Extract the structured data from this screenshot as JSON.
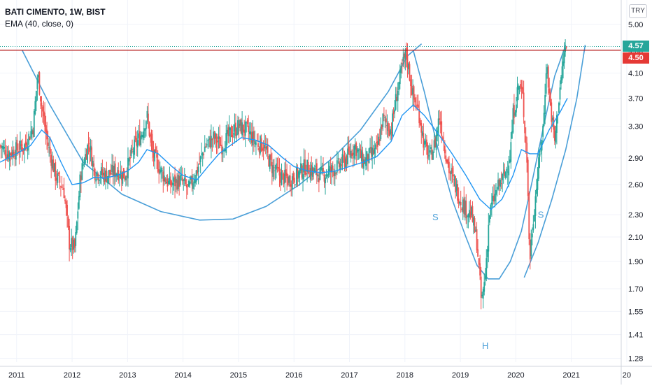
{
  "header": {
    "symbol": "BATI CIMENTO, 1W, BIST",
    "indicator": "EMA (40, close, 0)",
    "currency": "TRY"
  },
  "price_tags": {
    "last": "4.57",
    "level": "4.50"
  },
  "colors": {
    "background": "#ffffff",
    "up": "#26a69a",
    "down": "#ef5350",
    "ema": "#2196f3",
    "pattern": "#4a9fd8",
    "level_line": "#b71c1c",
    "last_tag": "#26a69a",
    "level_tag": "#e53935",
    "axis_text": "#131722"
  },
  "chart_data": {
    "type": "candlestick",
    "scale": "log",
    "ylim": [
      1.26,
      5.4
    ],
    "y_ticks": [
      "5.00",
      "4.50",
      "4.10",
      "3.70",
      "3.30",
      "2.90",
      "2.60",
      "2.30",
      "2.10",
      "1.90",
      "1.70",
      "1.55",
      "1.41",
      "1.28"
    ],
    "x_ticks": [
      "2011",
      "2012",
      "2013",
      "2014",
      "2015",
      "2016",
      "2017",
      "2018",
      "2019",
      "2020",
      "2021",
      "20"
    ],
    "xlim": [
      2010.7,
      2021.9
    ],
    "horizontal_levels": [
      4.5
    ],
    "last_price": 4.57,
    "pattern_labels": [
      {
        "text": "S",
        "x": 2018.55,
        "y": 2.25
      },
      {
        "text": "H",
        "x": 2019.45,
        "y": 1.33
      },
      {
        "text": "S",
        "x": 2020.45,
        "y": 2.27
      }
    ],
    "close_series": [
      [
        2010.7,
        3.05
      ],
      [
        2010.85,
        2.95
      ],
      [
        2011.0,
        3.0
      ],
      [
        2011.15,
        3.05
      ],
      [
        2011.3,
        3.3
      ],
      [
        2011.38,
        4.1
      ],
      [
        2011.45,
        3.6
      ],
      [
        2011.55,
        3.1
      ],
      [
        2011.7,
        2.7
      ],
      [
        2011.85,
        2.55
      ],
      [
        2011.95,
        2.05
      ],
      [
        2012.05,
        2.0
      ],
      [
        2012.15,
        2.7
      ],
      [
        2012.3,
        3.1
      ],
      [
        2012.4,
        2.75
      ],
      [
        2012.6,
        2.7
      ],
      [
        2012.8,
        2.75
      ],
      [
        2012.95,
        2.7
      ],
      [
        2013.1,
        3.0
      ],
      [
        2013.25,
        3.2
      ],
      [
        2013.35,
        3.45
      ],
      [
        2013.45,
        2.95
      ],
      [
        2013.6,
        2.75
      ],
      [
        2013.75,
        2.6
      ],
      [
        2013.95,
        2.65
      ],
      [
        2014.1,
        2.55
      ],
      [
        2014.25,
        2.75
      ],
      [
        2014.4,
        3.05
      ],
      [
        2014.55,
        3.15
      ],
      [
        2014.7,
        3.05
      ],
      [
        2014.85,
        3.2
      ],
      [
        2015.0,
        3.3
      ],
      [
        2015.15,
        3.25
      ],
      [
        2015.3,
        3.1
      ],
      [
        2015.45,
        3.05
      ],
      [
        2015.6,
        2.8
      ],
      [
        2015.75,
        2.7
      ],
      [
        2015.9,
        2.65
      ],
      [
        2016.05,
        2.7
      ],
      [
        2016.2,
        2.8
      ],
      [
        2016.35,
        2.75
      ],
      [
        2016.5,
        2.7
      ],
      [
        2016.65,
        2.75
      ],
      [
        2016.8,
        2.8
      ],
      [
        2016.95,
        2.9
      ],
      [
        2017.1,
        3.05
      ],
      [
        2017.25,
        2.85
      ],
      [
        2017.4,
        2.95
      ],
      [
        2017.5,
        3.0
      ],
      [
        2017.6,
        3.4
      ],
      [
        2017.75,
        3.25
      ],
      [
        2017.85,
        3.75
      ],
      [
        2017.95,
        4.2
      ],
      [
        2018.02,
        4.45
      ],
      [
        2018.08,
        4.1
      ],
      [
        2018.15,
        3.7
      ],
      [
        2018.25,
        3.5
      ],
      [
        2018.35,
        3.05
      ],
      [
        2018.45,
        2.9
      ],
      [
        2018.55,
        3.1
      ],
      [
        2018.62,
        3.45
      ],
      [
        2018.7,
        3.1
      ],
      [
        2018.8,
        2.75
      ],
      [
        2018.9,
        2.6
      ],
      [
        2019.0,
        2.45
      ],
      [
        2019.1,
        2.35
      ],
      [
        2019.2,
        2.3
      ],
      [
        2019.3,
        2.05
      ],
      [
        2019.38,
        1.6
      ],
      [
        2019.45,
        1.8
      ],
      [
        2019.52,
        2.3
      ],
      [
        2019.6,
        2.45
      ],
      [
        2019.7,
        2.6
      ],
      [
        2019.8,
        2.7
      ],
      [
        2019.9,
        2.95
      ],
      [
        2019.95,
        3.45
      ],
      [
        2020.05,
        3.9
      ],
      [
        2020.12,
        3.75
      ],
      [
        2020.2,
        2.9
      ],
      [
        2020.25,
        1.9
      ],
      [
        2020.3,
        2.2
      ],
      [
        2020.4,
        2.75
      ],
      [
        2020.5,
        3.35
      ],
      [
        2020.55,
        4.3
      ],
      [
        2020.62,
        3.6
      ],
      [
        2020.7,
        3.1
      ],
      [
        2020.8,
        3.9
      ],
      [
        2020.88,
        4.5
      ],
      [
        2020.93,
        4.57
      ]
    ],
    "ema_series": [
      [
        2010.7,
        2.85
      ],
      [
        2011.0,
        2.95
      ],
      [
        2011.25,
        3.05
      ],
      [
        2011.45,
        3.25
      ],
      [
        2011.6,
        3.15
      ],
      [
        2011.8,
        2.85
      ],
      [
        2012.0,
        2.6
      ],
      [
        2012.2,
        2.62
      ],
      [
        2012.4,
        2.68
      ],
      [
        2012.6,
        2.67
      ],
      [
        2012.8,
        2.7
      ],
      [
        2013.0,
        2.75
      ],
      [
        2013.2,
        2.85
      ],
      [
        2013.35,
        3.0
      ],
      [
        2013.55,
        2.95
      ],
      [
        2013.8,
        2.8
      ],
      [
        2014.0,
        2.7
      ],
      [
        2014.25,
        2.65
      ],
      [
        2014.45,
        2.8
      ],
      [
        2014.65,
        2.95
      ],
      [
        2014.85,
        3.05
      ],
      [
        2015.05,
        3.15
      ],
      [
        2015.3,
        3.12
      ],
      [
        2015.55,
        3.05
      ],
      [
        2015.8,
        2.9
      ],
      [
        2016.0,
        2.8
      ],
      [
        2016.25,
        2.75
      ],
      [
        2016.5,
        2.73
      ],
      [
        2016.75,
        2.75
      ],
      [
        2017.0,
        2.8
      ],
      [
        2017.25,
        2.85
      ],
      [
        2017.5,
        2.92
      ],
      [
        2017.75,
        3.1
      ],
      [
        2017.95,
        3.45
      ],
      [
        2018.15,
        3.6
      ],
      [
        2018.35,
        3.45
      ],
      [
        2018.6,
        3.2
      ],
      [
        2018.85,
        2.95
      ],
      [
        2019.1,
        2.7
      ],
      [
        2019.35,
        2.45
      ],
      [
        2019.55,
        2.35
      ],
      [
        2019.75,
        2.45
      ],
      [
        2019.95,
        2.7
      ],
      [
        2020.1,
        3.0
      ],
      [
        2020.25,
        2.95
      ],
      [
        2020.4,
        2.95
      ],
      [
        2020.6,
        3.25
      ],
      [
        2020.8,
        3.5
      ],
      [
        2020.93,
        3.7
      ]
    ],
    "pattern_curves": [
      [
        [
          2011.1,
          4.5
        ],
        [
          2011.6,
          3.6
        ],
        [
          2012.2,
          2.85
        ],
        [
          2012.9,
          2.5
        ],
        [
          2013.6,
          2.33
        ],
        [
          2014.3,
          2.25
        ],
        [
          2014.9,
          2.26
        ],
        [
          2015.5,
          2.38
        ],
        [
          2016.1,
          2.6
        ],
        [
          2016.7,
          2.9
        ],
        [
          2017.2,
          3.25
        ],
        [
          2017.7,
          3.8
        ],
        [
          2018.05,
          4.4
        ],
        [
          2018.3,
          4.62
        ]
      ],
      [
        [
          2018.15,
          4.5
        ],
        [
          2018.35,
          3.8
        ],
        [
          2018.6,
          3.0
        ],
        [
          2018.85,
          2.45
        ],
        [
          2019.1,
          2.1
        ],
        [
          2019.3,
          1.87
        ],
        [
          2019.5,
          1.77
        ],
        [
          2019.7,
          1.77
        ],
        [
          2019.9,
          1.9
        ],
        [
          2020.1,
          2.15
        ],
        [
          2020.3,
          2.65
        ],
        [
          2020.5,
          3.3
        ],
        [
          2020.7,
          4.05
        ],
        [
          2020.9,
          4.6
        ]
      ],
      [
        [
          2020.15,
          1.78
        ],
        [
          2020.4,
          2.05
        ],
        [
          2020.65,
          2.45
        ],
        [
          2020.9,
          3.0
        ],
        [
          2021.1,
          3.7
        ],
        [
          2021.25,
          4.6
        ]
      ]
    ]
  }
}
